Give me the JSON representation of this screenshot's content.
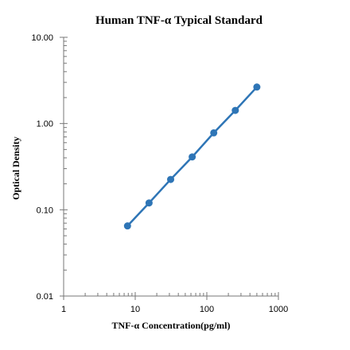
{
  "chart_data": {
    "type": "scatter",
    "title": "Human TNF-α Typical Standard",
    "xlabel": "TNF-α Concentration(pg/ml)",
    "ylabel": "Optical Density",
    "x_scale": "log",
    "y_scale": "log",
    "xlim": [
      1,
      1000
    ],
    "ylim": [
      0.01,
      10
    ],
    "x_ticks": [
      "1",
      "10",
      "100",
      "1000"
    ],
    "y_ticks": [
      "0.01",
      "0.10",
      "1.00",
      "10.00"
    ],
    "grid": false,
    "legend": "none",
    "series": [
      {
        "x": [
          7.8,
          15.6,
          31.25,
          62.5,
          125,
          250,
          500
        ],
        "y": [
          0.065,
          0.12,
          0.225,
          0.41,
          0.78,
          1.42,
          2.65
        ],
        "color": "#2e75b6",
        "line": true
      }
    ]
  }
}
